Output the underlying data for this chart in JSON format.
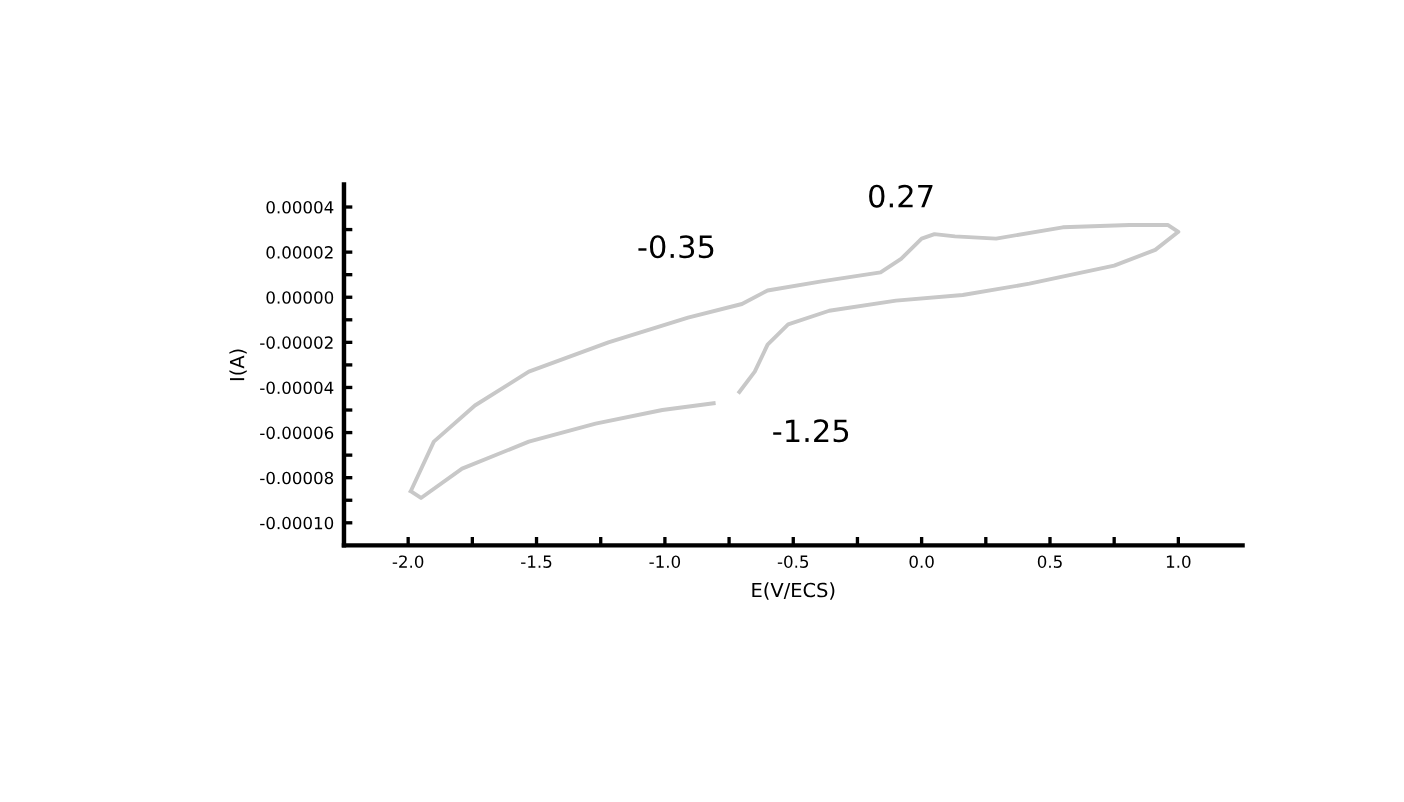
{
  "chart_data": {
    "type": "line",
    "xlabel": "E(V/ECS)",
    "ylabel": "I(A)",
    "series": [
      {
        "color": "#c8c8c8",
        "x": [
          -1.99,
          -1.9,
          -1.74,
          -1.53,
          -1.22,
          -0.91,
          -0.7,
          -0.6,
          -0.39,
          -0.16,
          -0.08,
          0.0,
          0.05,
          0.13,
          0.29,
          0.55,
          0.81,
          0.96,
          1.0,
          0.91,
          0.75,
          0.42,
          0.16,
          -0.1,
          -0.36,
          -0.52,
          -0.6,
          -0.65,
          -0.71,
          null,
          -0.81,
          -1.01,
          -1.27,
          -1.53,
          -1.79,
          -1.95,
          -1.99
        ],
        "values": [
          -8.6e-05,
          -6.4e-05,
          -4.8e-05,
          -3.3e-05,
          -2e-05,
          -9e-06,
          -3e-06,
          3e-06,
          7e-06,
          1.1e-05,
          1.7e-05,
          2.6e-05,
          2.8e-05,
          2.7e-05,
          2.6e-05,
          3.1e-05,
          3.2e-05,
          3.2e-05,
          2.9e-05,
          2.1e-05,
          1.4e-05,
          6e-06,
          1e-06,
          -1.5e-06,
          -6e-06,
          -1.2e-05,
          -2.1e-05,
          -3.3e-05,
          -4.2e-05,
          null,
          -4.7e-05,
          -5e-05,
          -5.6e-05,
          -6.4e-05,
          -7.6e-05,
          -8.9e-05,
          -8.6e-05
        ]
      }
    ],
    "xlim": [
      -2.25,
      1.25
    ],
    "xticks": [
      {
        "value": -2.0,
        "label": "-2.0"
      },
      {
        "value": -1.75,
        "label": null
      },
      {
        "value": -1.5,
        "label": "-1.5"
      },
      {
        "value": -1.25,
        "label": null
      },
      {
        "value": -1.0,
        "label": "-1.0"
      },
      {
        "value": -0.75,
        "label": null
      },
      {
        "value": -0.5,
        "label": "-0.5"
      },
      {
        "value": -0.25,
        "label": null
      },
      {
        "value": 0.0,
        "label": "0.0"
      },
      {
        "value": 0.25,
        "label": null
      },
      {
        "value": 0.5,
        "label": "0.5"
      },
      {
        "value": 0.75,
        "label": null
      },
      {
        "value": 1.0,
        "label": "1.0"
      }
    ],
    "ylim": [
      -0.00011,
      5e-05
    ],
    "yticks": [
      {
        "value": -0.0001,
        "label": "-0.00010"
      },
      {
        "value": -9e-05,
        "label": null
      },
      {
        "value": -8e-05,
        "label": "-0.00008"
      },
      {
        "value": -7e-05,
        "label": null
      },
      {
        "value": -6e-05,
        "label": "-0.00006"
      },
      {
        "value": -5e-05,
        "label": null
      },
      {
        "value": -4e-05,
        "label": "-0.00004"
      },
      {
        "value": -3e-05,
        "label": null
      },
      {
        "value": -2e-05,
        "label": "-0.00002"
      },
      {
        "value": -1e-05,
        "label": null
      },
      {
        "value": 0.0,
        "label": "0.00000"
      },
      {
        "value": 1e-05,
        "label": null
      },
      {
        "value": 2e-05,
        "label": "0.00002"
      },
      {
        "value": 3e-05,
        "label": null
      },
      {
        "value": 4e-05,
        "label": "0.00004"
      }
    ],
    "annotations": [
      "0.27",
      "-0.35",
      "-1.25"
    ],
    "grid": false,
    "legend": false
  }
}
